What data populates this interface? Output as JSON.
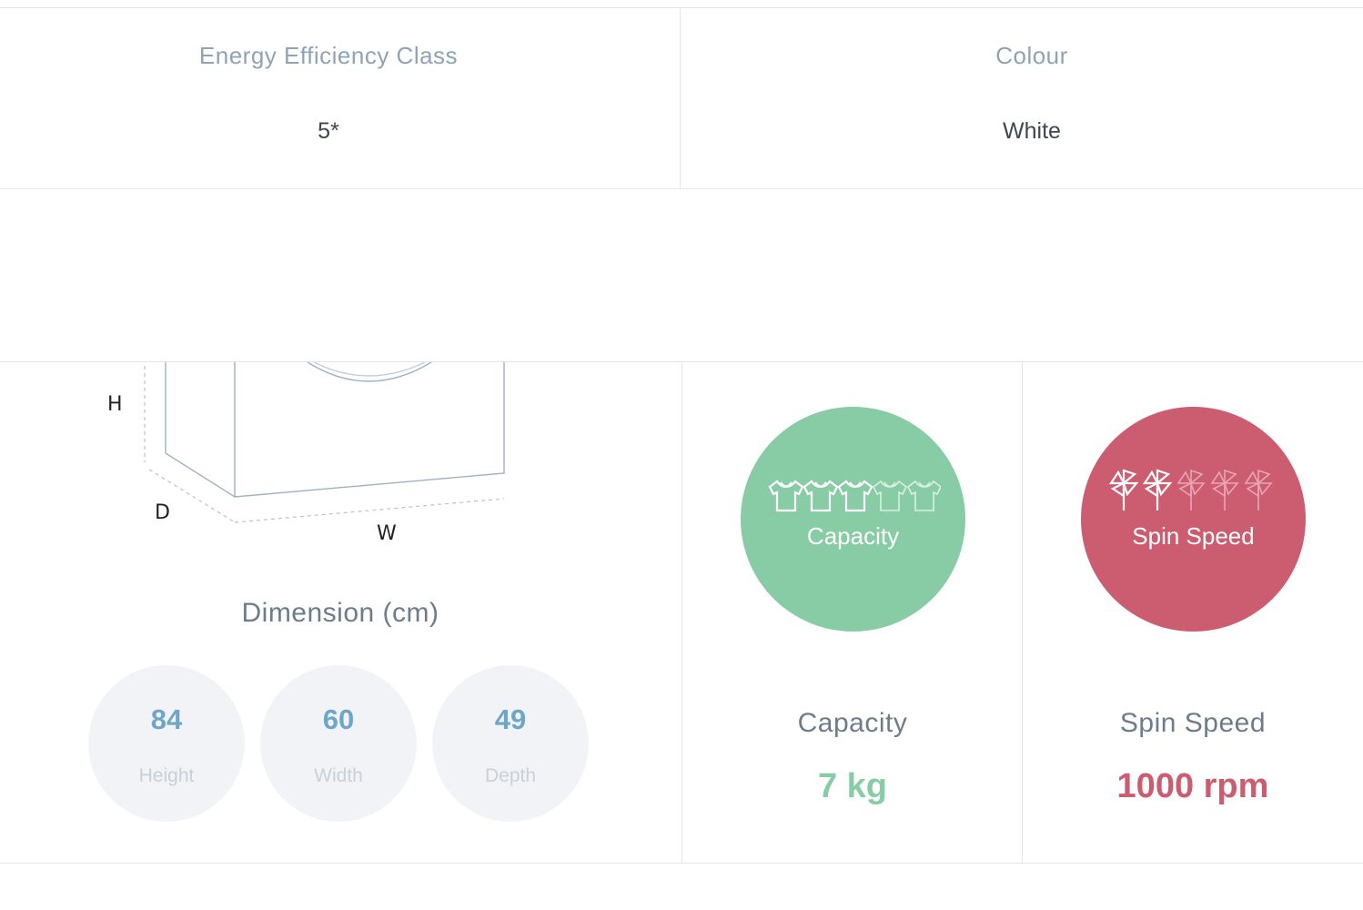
{
  "specs": {
    "energy": {
      "label": "Energy Efficiency Class",
      "value": "5*"
    },
    "colour": {
      "label": "Colour",
      "value": "White"
    }
  },
  "dimension": {
    "axis_h": "H",
    "axis_d": "D",
    "axis_w": "W",
    "title": "Dimension (cm)",
    "items": [
      {
        "value": "84",
        "label": "Height"
      },
      {
        "value": "60",
        "label": "Width"
      },
      {
        "value": "49",
        "label": "Depth"
      }
    ]
  },
  "capacity": {
    "circle_label": "Capacity",
    "title": "Capacity",
    "value": "7 kg",
    "color": "#88cca5",
    "icon": "shirt-icon",
    "level_filled": 3,
    "level_total": 5
  },
  "spin": {
    "circle_label": "Spin Speed",
    "title": "Spin Speed",
    "value": "1000 rpm",
    "color": "#cc5c70",
    "icon": "pinwheel-icon",
    "level_filled": 2,
    "level_total": 5
  }
}
